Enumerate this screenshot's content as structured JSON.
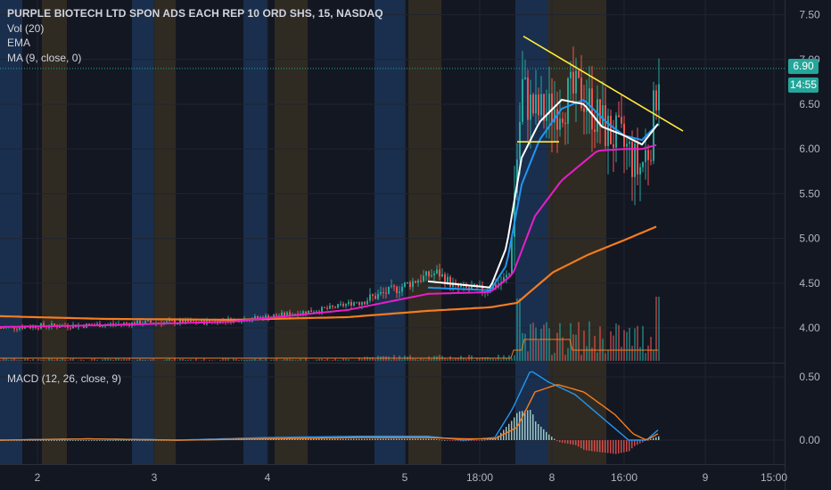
{
  "legend": {
    "title": "PURPLE BIOTECH LTD SPON ADS EACH REP 10 ORD SHS, 15, NASDAQ",
    "vol": "Vol (20)",
    "ema": "EMA",
    "ma": "MA (9, close, 0)"
  },
  "macd_legend": "MACD (12, 26, close, 9)",
  "price_tag": {
    "price": "6.90",
    "countdown": "14:55"
  },
  "colors": {
    "background": "#131722",
    "up": "#26a69a",
    "down": "#ef5350",
    "ema_line": "#f57c1f",
    "ma_line": "#e91ec8",
    "white_line": "#ffffff",
    "blue_line": "#2196f3",
    "trendline": "#ffeb3b",
    "session_blue": "#1e3a5f",
    "session_orange": "#3d3422"
  },
  "chart_data": {
    "type": "candlestick",
    "symbol": "PURPLE BIOTECH LTD SPON ADS EACH REP 10 ORD SHS",
    "interval": "15",
    "exchange": "NASDAQ",
    "price_axis": {
      "ticks": [
        7.5,
        7.0,
        6.5,
        6.0,
        5.5,
        5.0,
        4.5,
        4.0
      ],
      "labels": [
        "7.50",
        "7.00",
        "6.50",
        "6.00",
        "5.50",
        "5.00",
        "4.50",
        "4.00"
      ]
    },
    "macd_axis": {
      "ticks": [
        0.5,
        0.0
      ],
      "labels": [
        "0.50",
        "0.00"
      ]
    },
    "time_axis": {
      "labels": [
        "2",
        "3",
        "4",
        "5",
        "18:00",
        "8",
        "16:00",
        "9",
        "15:00"
      ]
    },
    "last_price": 6.9,
    "price_profile": {
      "x": [
        0,
        40,
        100,
        170,
        230,
        280,
        320,
        370,
        410,
        440,
        470,
        490,
        510,
        540,
        560,
        570,
        578,
        585,
        592,
        600,
        612,
        625,
        640,
        655,
        668,
        680,
        692,
        705,
        715,
        728,
        738
      ],
      "y": [
        4.0,
        4.02,
        4.03,
        4.06,
        4.07,
        4.1,
        4.15,
        4.22,
        4.32,
        4.42,
        4.55,
        4.62,
        4.45,
        4.42,
        4.5,
        4.6,
        5.8,
        6.7,
        6.5,
        6.4,
        6.4,
        6.5,
        6.6,
        6.6,
        6.35,
        6.2,
        6.1,
        5.95,
        5.75,
        6.05,
        6.9
      ]
    },
    "ema_profile": {
      "x": [
        0,
        120,
        260,
        390,
        480,
        550,
        580,
        620,
        660,
        700,
        738
      ],
      "y": [
        4.13,
        4.1,
        4.09,
        4.12,
        4.19,
        4.23,
        4.28,
        4.62,
        4.82,
        4.98,
        5.14
      ]
    },
    "ma_profile": {
      "x": [
        0,
        120,
        260,
        390,
        480,
        550,
        575,
        600,
        630,
        670,
        700,
        720,
        738
      ],
      "y": [
        4.01,
        4.03,
        4.07,
        4.2,
        4.38,
        4.4,
        4.6,
        5.25,
        5.65,
        5.98,
        6.0,
        6.0,
        6.05
      ]
    },
    "blue_profile": {
      "x": [
        480,
        550,
        568,
        585,
        605,
        630,
        655,
        680,
        700,
        720,
        738
      ],
      "y": [
        4.45,
        4.42,
        4.7,
        5.6,
        6.1,
        6.45,
        6.55,
        6.3,
        6.15,
        6.1,
        6.28
      ]
    },
    "white_profile": {
      "x": [
        480,
        550,
        568,
        585,
        605,
        630,
        655,
        675,
        700,
        720,
        738
      ],
      "y": [
        4.52,
        4.45,
        4.9,
        5.9,
        6.3,
        6.55,
        6.5,
        6.25,
        6.15,
        6.05,
        6.28
      ]
    },
    "trendlines": [
      {
        "x": [
          587,
          766
        ],
        "y": [
          7.26,
          6.2
        ]
      },
      {
        "x": [
          580,
          627
        ],
        "y": [
          6.08,
          6.08
        ]
      }
    ],
    "macd_profile": {
      "x": [
        0,
        100,
        200,
        300,
        400,
        480,
        520,
        555,
        575,
        595,
        615,
        645,
        680,
        705,
        725,
        738
      ],
      "y": [
        0.0,
        0.01,
        0.0,
        0.02,
        0.03,
        0.03,
        0.0,
        0.02,
        0.25,
        0.55,
        0.46,
        0.36,
        0.15,
        0.0,
        0.0,
        0.08
      ]
    },
    "signal_profile": {
      "x": [
        0,
        100,
        200,
        300,
        400,
        480,
        520,
        555,
        580,
        600,
        625,
        655,
        690,
        710,
        725,
        738
      ],
      "y": [
        0.0,
        0.01,
        0.0,
        0.01,
        0.02,
        0.02,
        0.01,
        0.01,
        0.1,
        0.38,
        0.44,
        0.38,
        0.2,
        0.05,
        0.0,
        0.05
      ]
    }
  }
}
